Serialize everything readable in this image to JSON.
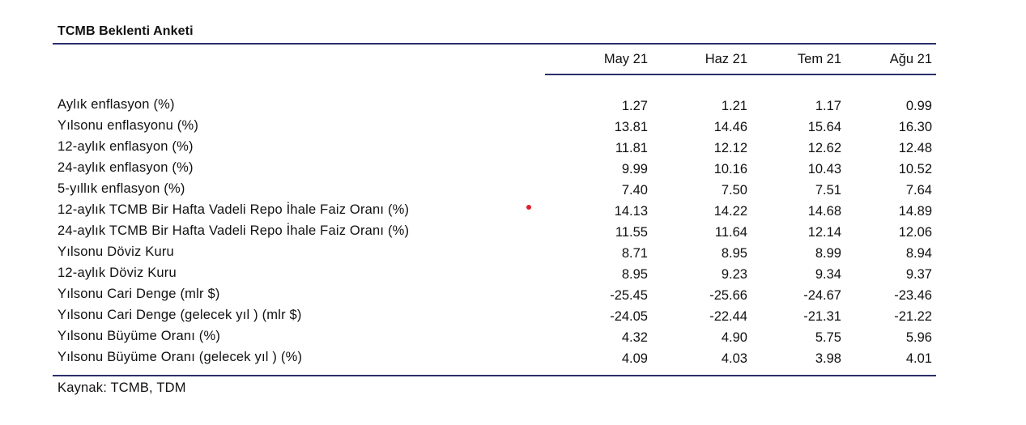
{
  "title": "TCMB Beklenti Anketi",
  "columns": [
    "May 21",
    "Haz 21",
    "Tem 21",
    "Ağu 21"
  ],
  "rows": [
    {
      "label": "Aylık enflasyon (%)",
      "values": [
        "1.27",
        "1.21",
        "1.17",
        "0.99"
      ]
    },
    {
      "label": "Yılsonu enflasyonu (%)",
      "values": [
        "13.81",
        "14.46",
        "15.64",
        "16.30"
      ]
    },
    {
      "label": "12-aylık enflasyon (%)",
      "values": [
        "11.81",
        "12.12",
        "12.62",
        "12.48"
      ]
    },
    {
      "label": "24-aylık enflasyon (%)",
      "values": [
        "9.99",
        "10.16",
        "10.43",
        "10.52"
      ]
    },
    {
      "label": "5-yıllık enflasyon (%)",
      "values": [
        "7.40",
        "7.50",
        "7.51",
        "7.64"
      ]
    },
    {
      "label": "12-aylık TCMB Bir Hafta Vadeli Repo İhale Faiz Oranı (%)",
      "values": [
        "14.13",
        "14.22",
        "14.68",
        "14.89"
      ]
    },
    {
      "label": "24-aylık TCMB Bir Hafta Vadeli Repo İhale Faiz Oranı (%)",
      "values": [
        "11.55",
        "11.64",
        "12.14",
        "12.06"
      ]
    },
    {
      "label": "Yılsonu Döviz Kuru",
      "values": [
        "8.71",
        "8.95",
        "8.99",
        "8.94"
      ]
    },
    {
      "label": "12-aylık Döviz Kuru",
      "values": [
        "8.95",
        "9.23",
        "9.34",
        "9.37"
      ]
    },
    {
      "label": "Yılsonu Cari Denge (mlr $)",
      "values": [
        "-25.45",
        "-25.66",
        "-24.67",
        "-23.46"
      ]
    },
    {
      "label": "Yılsonu Cari Denge (gelecek yıl ) (mlr $)",
      "values": [
        "-24.05",
        "-22.44",
        "-21.31",
        "-21.22"
      ]
    },
    {
      "label": "Yılsonu Büyüme Oranı (%)",
      "values": [
        "4.32",
        "4.90",
        "5.75",
        "5.96"
      ]
    },
    {
      "label": "Yılsonu Büyüme Oranı (gelecek yıl ) (%)",
      "values": [
        "4.09",
        "4.03",
        "3.98",
        "4.01"
      ]
    }
  ],
  "source": "Kaynak: TCMB, TDM",
  "colors": {
    "rule": "#2b2f6b",
    "marker": "#e0202a",
    "text": "#111111"
  }
}
